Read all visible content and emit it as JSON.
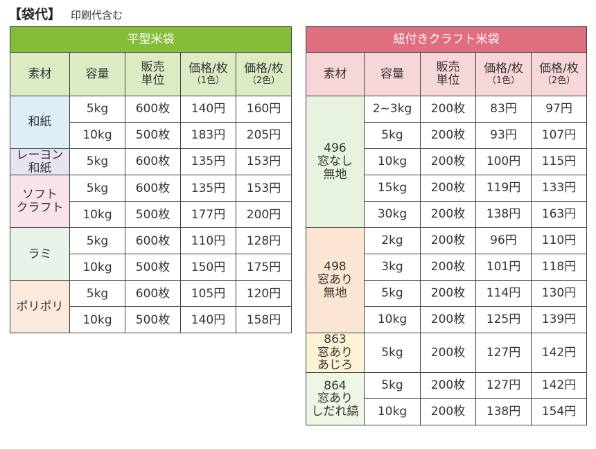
{
  "heading": {
    "main": "【袋代】",
    "sub": "印刷代含む"
  },
  "colors": {
    "left_title_bg": "#84bd3a",
    "right_title_bg": "#df6f7e",
    "left_header_bg": "#dcebc4",
    "right_header_bg": "#f7d6d9"
  },
  "left_table": {
    "title": "平型米袋",
    "headers": {
      "material": "素材",
      "capacity": "容量",
      "unit_line1": "販売",
      "unit_line2": "単位",
      "price1_line1": "価格/枚",
      "price1_line2": "（1色）",
      "price2_line1": "価格/枚",
      "price2_line2": "（2色）"
    },
    "groups": [
      {
        "material_lines": [
          "和紙"
        ],
        "color": "#ddeef8",
        "rows": [
          {
            "capacity": "5kg",
            "unit": "600枚",
            "price1": "140円",
            "price2": "160円"
          },
          {
            "capacity": "10kg",
            "unit": "500枚",
            "price1": "183円",
            "price2": "205円"
          }
        ]
      },
      {
        "material_lines": [
          "レーヨン",
          "和紙"
        ],
        "color": "#e7e3f1",
        "rows": [
          {
            "capacity": "5kg",
            "unit": "600枚",
            "price1": "135円",
            "price2": "153円"
          }
        ]
      },
      {
        "material_lines": [
          "ソフト",
          "クラフト"
        ],
        "color": "#f8e3ec",
        "rows": [
          {
            "capacity": "5kg",
            "unit": "600枚",
            "price1": "135円",
            "price2": "153円"
          },
          {
            "capacity": "10kg",
            "unit": "500枚",
            "price1": "177円",
            "price2": "200円"
          }
        ]
      },
      {
        "material_lines": [
          "ラミ"
        ],
        "color": "#e8f3ea",
        "rows": [
          {
            "capacity": "5kg",
            "unit": "600枚",
            "price1": "110円",
            "price2": "128円"
          },
          {
            "capacity": "10kg",
            "unit": "500枚",
            "price1": "150円",
            "price2": "175円"
          }
        ]
      },
      {
        "material_lines": [
          "ポリポリ"
        ],
        "color": "#fbe9dc",
        "rows": [
          {
            "capacity": "5kg",
            "unit": "600枚",
            "price1": "105円",
            "price2": "120円"
          },
          {
            "capacity": "10kg",
            "unit": "500枚",
            "price1": "140円",
            "price2": "158円"
          }
        ]
      }
    ]
  },
  "right_table": {
    "title": "紐付きクラフト米袋",
    "headers": {
      "material": "素材",
      "capacity": "容量",
      "unit_line1": "販売",
      "unit_line2": "単位",
      "price1_line1": "価格/枚",
      "price1_line2": "（1色）",
      "price2_line1": "価格/枚",
      "price2_line2": "（2色）"
    },
    "groups": [
      {
        "material_lines": [
          "496",
          "窓なし",
          "無地"
        ],
        "color": "#e8f3df",
        "rows": [
          {
            "capacity": "2~3kg",
            "unit": "200枚",
            "price1": "83円",
            "price2": "97円"
          },
          {
            "capacity": "5kg",
            "unit": "200枚",
            "price1": "93円",
            "price2": "107円"
          },
          {
            "capacity": "10kg",
            "unit": "200枚",
            "price1": "100円",
            "price2": "115円"
          },
          {
            "capacity": "15kg",
            "unit": "200枚",
            "price1": "119円",
            "price2": "133円"
          },
          {
            "capacity": "30kg",
            "unit": "200枚",
            "price1": "138円",
            "price2": "163円"
          }
        ]
      },
      {
        "material_lines": [
          "498",
          "窓あり",
          "無地"
        ],
        "color": "#fbe6d3",
        "rows": [
          {
            "capacity": "2kg",
            "unit": "200枚",
            "price1": "96円",
            "price2": "110円"
          },
          {
            "capacity": "3kg",
            "unit": "200枚",
            "price1": "101円",
            "price2": "118円"
          },
          {
            "capacity": "5kg",
            "unit": "200枚",
            "price1": "114円",
            "price2": "130円"
          },
          {
            "capacity": "10kg",
            "unit": "200枚",
            "price1": "125円",
            "price2": "139円"
          }
        ]
      },
      {
        "material_lines": [
          "863",
          "窓あり",
          "あじろ"
        ],
        "color": "#fdf3d4",
        "rows": [
          {
            "capacity": "5kg",
            "unit": "200枚",
            "price1": "127円",
            "price2": "142円"
          }
        ]
      },
      {
        "material_lines": [
          "864",
          "窓あり",
          "しだれ縞"
        ],
        "color": "#eef6e6",
        "rows": [
          {
            "capacity": "5kg",
            "unit": "200枚",
            "price1": "127円",
            "price2": "142円"
          },
          {
            "capacity": "10kg",
            "unit": "200枚",
            "price1": "138円",
            "price2": "154円"
          }
        ]
      }
    ]
  }
}
